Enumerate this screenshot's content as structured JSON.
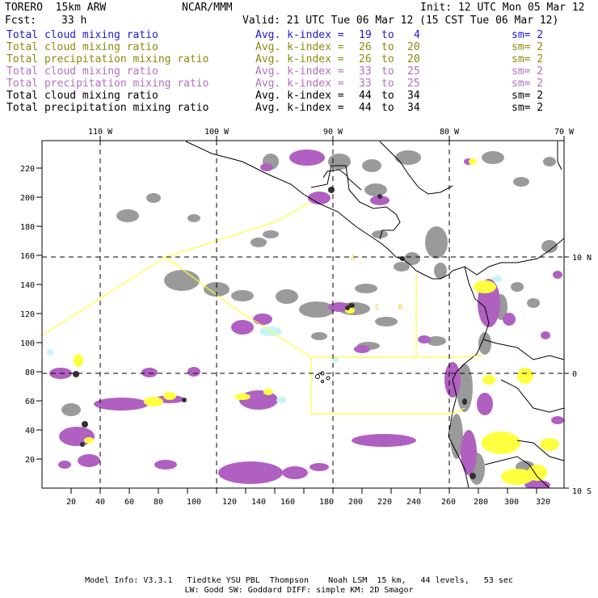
{
  "header": {
    "model": "TORERO  15km ARW",
    "org": "NCAR/MMM",
    "init": "Init: 12 UTC Mon 05 Mar 12",
    "fcst_label": "Fcst:",
    "fcst_value": "33 h",
    "valid": "Valid: 21 UTC Tue 06 Mar 12 (15 CST Tue 06 Mar 12)"
  },
  "legend": [
    {
      "field": "Total cloud mixing ratio",
      "index": "Avg. k-index =",
      "lo": "19",
      "to": "to",
      "hi": "4",
      "sm": "sm= 2",
      "color": "#1a1ad0"
    },
    {
      "field": "Total cloud mixing ratio",
      "index": "Avg. k-index =",
      "lo": "26",
      "to": "to",
      "hi": "20",
      "sm": "sm= 2",
      "color": "#8a8a10"
    },
    {
      "field": "Total precipitation mixing ratio",
      "index": "Avg. k-index =",
      "lo": "26",
      "to": "to",
      "hi": "20",
      "sm": "sm= 2",
      "color": "#8a8a10"
    },
    {
      "field": "Total cloud mixing ratio",
      "index": "Avg. k-index =",
      "lo": "33",
      "to": "to",
      "hi": "25",
      "sm": "sm= 2",
      "color": "#b070c0"
    },
    {
      "field": "Total precipitation mixing ratio",
      "index": "Avg. k-index =",
      "lo": "33",
      "to": "to",
      "hi": "25",
      "sm": "sm= 2",
      "color": "#b070c0"
    },
    {
      "field": "Total cloud mixing ratio",
      "index": "Avg. k-index =",
      "lo": "44",
      "to": "to",
      "hi": "34",
      "sm": "sm= 2",
      "color": "#000000"
    },
    {
      "field": "Total precipitation mixing ratio",
      "index": "Avg. k-index =",
      "lo": "44",
      "to": "to",
      "hi": "34",
      "sm": "sm= 2",
      "color": "#000000"
    }
  ],
  "axes": {
    "bottom": [
      "20",
      "40",
      "60",
      "80",
      "100",
      "120",
      "140",
      "160",
      "180",
      "200",
      "220",
      "240",
      "260",
      "280",
      "300",
      "320"
    ],
    "left": [
      "20",
      "40",
      "60",
      "80",
      "100",
      "120",
      "140",
      "160",
      "180",
      "200",
      "220"
    ],
    "top": [
      "110 W",
      "100 W",
      "90 W",
      "80 W",
      "70 W"
    ],
    "right": [
      "10 N",
      "0",
      "10 S"
    ]
  },
  "map_labels": {
    "a": "A",
    "c": "C",
    "r": "R"
  },
  "colors": {
    "cloud_gray": "#9a9a9a",
    "dark_core": "#303030",
    "purple": "#b060c0",
    "yellow": "#ffff40",
    "cyan": "#c8f4f8",
    "boundary": "#ffff33"
  },
  "footer": {
    "line1": "Model Info: V3.3.1   Tiedtke YSU PBL  Thompson    Noah LSM  15 km,   44 levels,   53 sec",
    "line2": "LW: Godd SW: Goddard DIFF: simple KM: 2D Smagor"
  }
}
